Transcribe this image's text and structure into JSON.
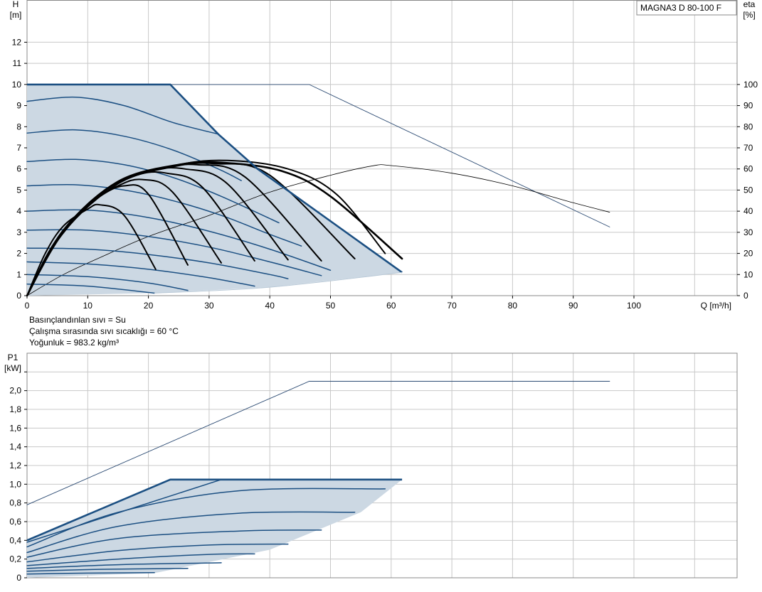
{
  "chart_data": [
    {
      "type": "line",
      "title": "MAGNA3 D 80-100 F",
      "xlabel": "Q [m³/h]",
      "ylabel_top": "H",
      "ylabel_unit": "[m]",
      "y2label_top": "eta",
      "y2label_unit": "[%]",
      "xlim": [
        0,
        117
      ],
      "ylim": [
        0,
        14
      ],
      "y2lim": [
        0,
        140
      ],
      "x_ticks": [
        "0",
        "10",
        "20",
        "30",
        "40",
        "50",
        "60",
        "70",
        "80",
        "90",
        "100"
      ],
      "y_ticks": [
        "0",
        "1",
        "2",
        "3",
        "4",
        "5",
        "6",
        "7",
        "8",
        "9",
        "10",
        "11",
        "12"
      ],
      "y2_ticks": [
        "0",
        "10",
        "20",
        "30",
        "40",
        "50",
        "60",
        "70",
        "80",
        "90",
        "100"
      ],
      "grid": true,
      "colors": {
        "region": "#ccd8e3",
        "curve": "#1b4f82",
        "eta": "#000000",
        "thin": "#2c4b73"
      },
      "operating_region": {
        "max_curve": [
          [
            0,
            10
          ],
          [
            23.6,
            10
          ],
          [
            31.5,
            7.65
          ],
          [
            38,
            6.0
          ],
          [
            61.8,
            1.1
          ]
        ],
        "min_curve_end": [
          [
            21,
            0.12
          ],
          [
            40,
            0.4
          ],
          [
            61.8,
            1.1
          ]
        ]
      },
      "series": [
        {
          "kind": "max_extended_head",
          "values": [
            [
              0,
              10
            ],
            [
              46.5,
              10
            ],
            [
              96,
              3.25
            ]
          ]
        },
        {
          "kind": "eta_max_extended",
          "values": [
            [
              0,
              0
            ],
            [
              6,
              10
            ],
            [
              12,
              18
            ],
            [
              20,
              28
            ],
            [
              30,
              38
            ],
            [
              40,
              49
            ],
            [
              50,
              57
            ],
            [
              57,
              61.5
            ],
            [
              60,
              61.6
            ],
            [
              70,
              58
            ],
            [
              80,
              52
            ],
            [
              90,
              44
            ],
            [
              96,
              39.5
            ]
          ]
        },
        {
          "kind": "head_speed",
          "values": [
            [
              0,
              9.2
            ],
            [
              8,
              9.4
            ],
            [
              16,
              9
            ],
            [
              24,
              8.2
            ],
            [
              31.5,
              7.65
            ]
          ]
        },
        {
          "kind": "head_speed",
          "values": [
            [
              0,
              7.7
            ],
            [
              8,
              7.85
            ],
            [
              16,
              7.55
            ],
            [
              24,
              6.9
            ],
            [
              31.5,
              6.0
            ],
            [
              35.3,
              5.45
            ]
          ]
        },
        {
          "kind": "head_speed",
          "values": [
            [
              0,
              6.35
            ],
            [
              8,
              6.45
            ],
            [
              16,
              6.2
            ],
            [
              24,
              5.6
            ],
            [
              32,
              4.7
            ],
            [
              41.5,
              3.45
            ]
          ]
        },
        {
          "kind": "head_speed",
          "values": [
            [
              0,
              5.2
            ],
            [
              8,
              5.25
            ],
            [
              16,
              5.0
            ],
            [
              24,
              4.5
            ],
            [
              32,
              3.8
            ],
            [
              40,
              2.9
            ],
            [
              45.2,
              2.35
            ]
          ]
        },
        {
          "kind": "head_speed",
          "values": [
            [
              0,
              4.0
            ],
            [
              10,
              4.05
            ],
            [
              20,
              3.7
            ],
            [
              30,
              3.05
            ],
            [
              40,
              2.2
            ],
            [
              50,
              1.2
            ]
          ]
        },
        {
          "kind": "head_speed",
          "values": [
            [
              0,
              3.1
            ],
            [
              10,
              3.1
            ],
            [
              20,
              2.8
            ],
            [
              30,
              2.3
            ],
            [
              40,
              1.6
            ],
            [
              48.5,
              0.95
            ]
          ]
        },
        {
          "kind": "head_speed",
          "values": [
            [
              0,
              2.25
            ],
            [
              10,
              2.2
            ],
            [
              20,
              1.95
            ],
            [
              30,
              1.55
            ],
            [
              40,
              1.0
            ],
            [
              43,
              0.8
            ]
          ]
        },
        {
          "kind": "head_speed",
          "values": [
            [
              0,
              1.6
            ],
            [
              10,
              1.5
            ],
            [
              20,
              1.25
            ],
            [
              30,
              0.85
            ],
            [
              37.5,
              0.45
            ]
          ]
        },
        {
          "kind": "head_speed",
          "values": [
            [
              0,
              1.0
            ],
            [
              10,
              0.9
            ],
            [
              20,
              0.6
            ],
            [
              26.5,
              0.25
            ]
          ]
        },
        {
          "kind": "head_speed",
          "values": [
            [
              0,
              0.55
            ],
            [
              10,
              0.45
            ],
            [
              21,
              0.12
            ]
          ]
        },
        {
          "kind": "eta_speed",
          "values": [
            [
              0,
              0
            ],
            [
              3,
              20
            ],
            [
              6,
              33
            ],
            [
              10,
              41
            ],
            [
              12,
              43
            ],
            [
              16,
              38
            ],
            [
              21.2,
              12.5
            ]
          ]
        },
        {
          "kind": "eta_speed",
          "values": [
            [
              0,
              0
            ],
            [
              4,
              22
            ],
            [
              8,
              37
            ],
            [
              12,
              47
            ],
            [
              16,
              52
            ],
            [
              20,
              48
            ],
            [
              26.5,
              14.5
            ]
          ]
        },
        {
          "kind": "eta_speed",
          "values": [
            [
              0,
              0
            ],
            [
              4,
              22
            ],
            [
              10,
              43
            ],
            [
              15,
              52
            ],
            [
              19,
              55
            ],
            [
              24,
              49
            ],
            [
              32,
              15.5
            ]
          ]
        },
        {
          "kind": "eta_speed",
          "values": [
            [
              0,
              0
            ],
            [
              5,
              26
            ],
            [
              12,
              48
            ],
            [
              18,
              57
            ],
            [
              23,
              58
            ],
            [
              29,
              51
            ],
            [
              37.5,
              16.5
            ]
          ]
        },
        {
          "kind": "eta_speed",
          "values": [
            [
              0,
              0
            ],
            [
              5,
              27
            ],
            [
              13,
              50
            ],
            [
              20,
              59
            ],
            [
              26,
              60
            ],
            [
              33,
              53
            ],
            [
              43,
              17
            ]
          ]
        },
        {
          "kind": "eta_speed",
          "values": [
            [
              0,
              0
            ],
            [
              6,
              30
            ],
            [
              14,
              52
            ],
            [
              22,
              60
            ],
            [
              28,
              62
            ],
            [
              36,
              56
            ],
            [
              48.5,
              16.5
            ]
          ]
        },
        {
          "kind": "eta_speed",
          "values": [
            [
              0,
              0
            ],
            [
              6,
              30
            ],
            [
              15,
              53
            ],
            [
              24,
              61
            ],
            [
              31,
              62.5
            ],
            [
              40,
              57
            ],
            [
              54,
              17.5
            ]
          ]
        },
        {
          "kind": "eta_speed_max",
          "values": [
            [
              0,
              0
            ],
            [
              6,
              31
            ],
            [
              15,
              54
            ],
            [
              25,
              62
            ],
            [
              32,
              63
            ],
            [
              42,
              59
            ],
            [
              50,
              47
            ],
            [
              61.8,
              17.5
            ]
          ]
        },
        {
          "kind": "eta_speed",
          "values": [
            [
              0,
              0
            ],
            [
              6,
              31
            ],
            [
              15,
              54
            ],
            [
              25,
              62
            ],
            [
              33,
              64
            ],
            [
              43,
              60
            ],
            [
              51,
              48
            ],
            [
              59,
              20
            ]
          ]
        }
      ],
      "legend_box": {
        "text": "MAGNA3 D 80-100 F"
      }
    },
    {
      "type": "line",
      "ylabel_top": "P1",
      "ylabel_unit": "[kW]",
      "xlim": [
        0,
        117
      ],
      "ylim": [
        0,
        2.4
      ],
      "y_ticks": [
        "0",
        "0,2",
        "0,4",
        "0,6",
        "0,8",
        "1,0",
        "1,2",
        "1,4",
        "1,6",
        "1,8",
        "2,0"
      ],
      "grid": true,
      "operating_region": {
        "max_curve": [
          [
            0,
            0.4
          ],
          [
            23.6,
            1.05
          ],
          [
            61.8,
            1.05
          ]
        ],
        "min_curve_end": [
          [
            21,
            0.05
          ],
          [
            40,
            0.3
          ],
          [
            55,
            0.7
          ],
          [
            61.8,
            1.05
          ]
        ]
      },
      "series": [
        {
          "kind": "max_extended_power",
          "values": [
            [
              0,
              0.78
            ],
            [
              46.5,
              2.1
            ],
            [
              96,
              2.1
            ]
          ]
        },
        {
          "kind": "power_speed",
          "values": [
            [
              0,
              0.38
            ],
            [
              32,
              1.05
            ]
          ]
        },
        {
          "kind": "power_speed",
          "values": [
            [
              0,
              0.33
            ],
            [
              15,
              0.7
            ],
            [
              35,
              0.93
            ],
            [
              59,
              0.95
            ]
          ]
        },
        {
          "kind": "power_speed",
          "values": [
            [
              0,
              0.27
            ],
            [
              15,
              0.55
            ],
            [
              35,
              0.69
            ],
            [
              54,
              0.7
            ]
          ]
        },
        {
          "kind": "power_speed",
          "values": [
            [
              0,
              0.22
            ],
            [
              15,
              0.42
            ],
            [
              35,
              0.5
            ],
            [
              48.5,
              0.51
            ]
          ]
        },
        {
          "kind": "power_speed",
          "values": [
            [
              0,
              0.17
            ],
            [
              15,
              0.29
            ],
            [
              30,
              0.35
            ],
            [
              43,
              0.36
            ]
          ]
        },
        {
          "kind": "power_speed",
          "values": [
            [
              0,
              0.13
            ],
            [
              15,
              0.2
            ],
            [
              30,
              0.25
            ],
            [
              37.5,
              0.255
            ]
          ]
        },
        {
          "kind": "power_speed",
          "values": [
            [
              0,
              0.1
            ],
            [
              15,
              0.14
            ],
            [
              32,
              0.16
            ]
          ]
        },
        {
          "kind": "power_speed",
          "values": [
            [
              0,
              0.07
            ],
            [
              12,
              0.09
            ],
            [
              26.5,
              0.1
            ]
          ]
        },
        {
          "kind": "power_speed",
          "values": [
            [
              0,
              0.04
            ],
            [
              10,
              0.05
            ],
            [
              21,
              0.055
            ]
          ]
        }
      ]
    }
  ],
  "notes": {
    "line1": "Basınçlandınlan sıvı = Su",
    "line2": "Çalışma sırasında sıvı sıcaklığı = 60 °C",
    "line3": "Yoğunluk = 983.2 kg/m³"
  }
}
